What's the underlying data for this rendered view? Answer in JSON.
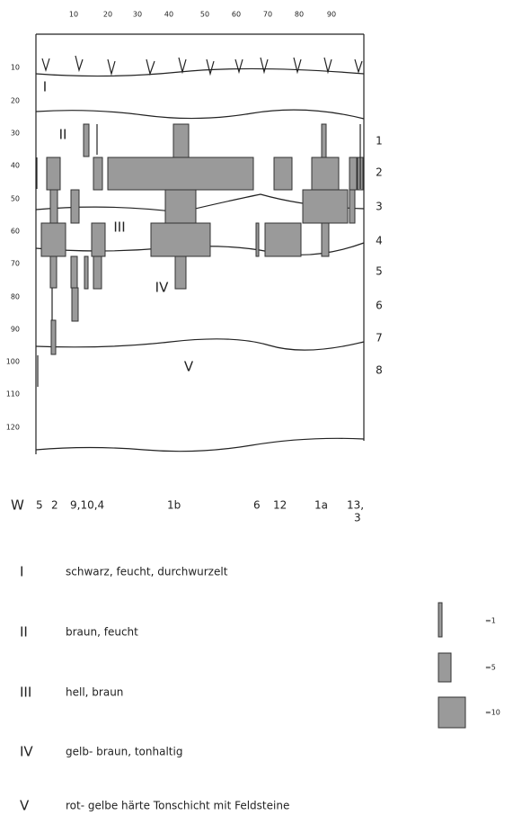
{
  "top_axis": [
    10,
    20,
    30,
    40,
    50,
    60,
    70,
    80,
    90
  ],
  "left_axis": [
    10,
    20,
    30,
    40,
    50,
    60,
    70,
    80,
    90,
    100,
    110,
    120
  ],
  "right_labels": [
    1,
    2,
    3,
    4,
    5,
    6,
    7,
    8
  ],
  "layer_labels": [
    "I",
    "II",
    "III",
    "IV",
    "V"
  ],
  "bottom_labels": [
    "W",
    "5",
    "2",
    "9,10,4",
    "1b",
    "6",
    "12",
    "1a",
    "13,",
    "3"
  ],
  "legend": [
    {
      "numeral": "I",
      "text": "schwarz, feucht, durchwurzelt"
    },
    {
      "numeral": "II",
      "text": "braun, feucht"
    },
    {
      "numeral": "III",
      "text": "hell, braun"
    },
    {
      "numeral": "IV",
      "text": "gelb- braun, tonhaltig"
    },
    {
      "numeral": "V",
      "text": "rot- gelbe härte Tonschicht mit Feldsteine"
    }
  ],
  "scale": [
    "=1",
    "=5",
    "=10"
  ]
}
